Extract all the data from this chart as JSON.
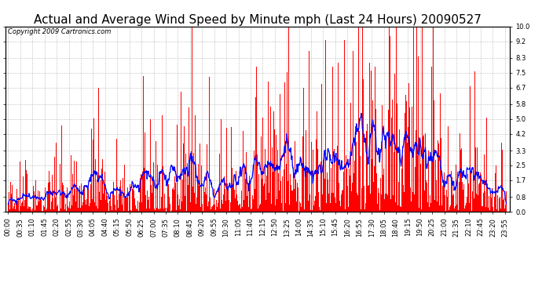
{
  "title": "Actual and Average Wind Speed by Minute mph (Last 24 Hours) 20090527",
  "copyright": "Copyright 2009 Cartronics.com",
  "yticks": [
    0.0,
    0.8,
    1.7,
    2.5,
    3.3,
    4.2,
    5.0,
    5.8,
    6.7,
    7.5,
    8.3,
    9.2,
    10.0
  ],
  "ylim": [
    0.0,
    10.0
  ],
  "bar_color": "#FF0000",
  "line_color": "#0000FF",
  "background_color": "#FFFFFF",
  "grid_color": "#BBBBBB",
  "title_fontsize": 11,
  "copyright_fontsize": 6,
  "tick_fontsize": 6,
  "xtick_interval_minutes": 35,
  "total_minutes": 1440,
  "figsize": [
    6.9,
    3.75
  ],
  "dpi": 100,
  "wind_envelope": [
    0.8,
    0.8,
    1.0,
    1.2,
    1.5,
    1.2,
    1.5,
    1.8,
    1.5,
    1.8,
    2.0,
    2.2,
    2.5,
    2.8,
    3.0,
    3.2,
    3.5,
    3.8,
    3.5,
    3.0,
    2.5,
    2.0,
    1.5,
    1.0
  ],
  "seed": 42
}
